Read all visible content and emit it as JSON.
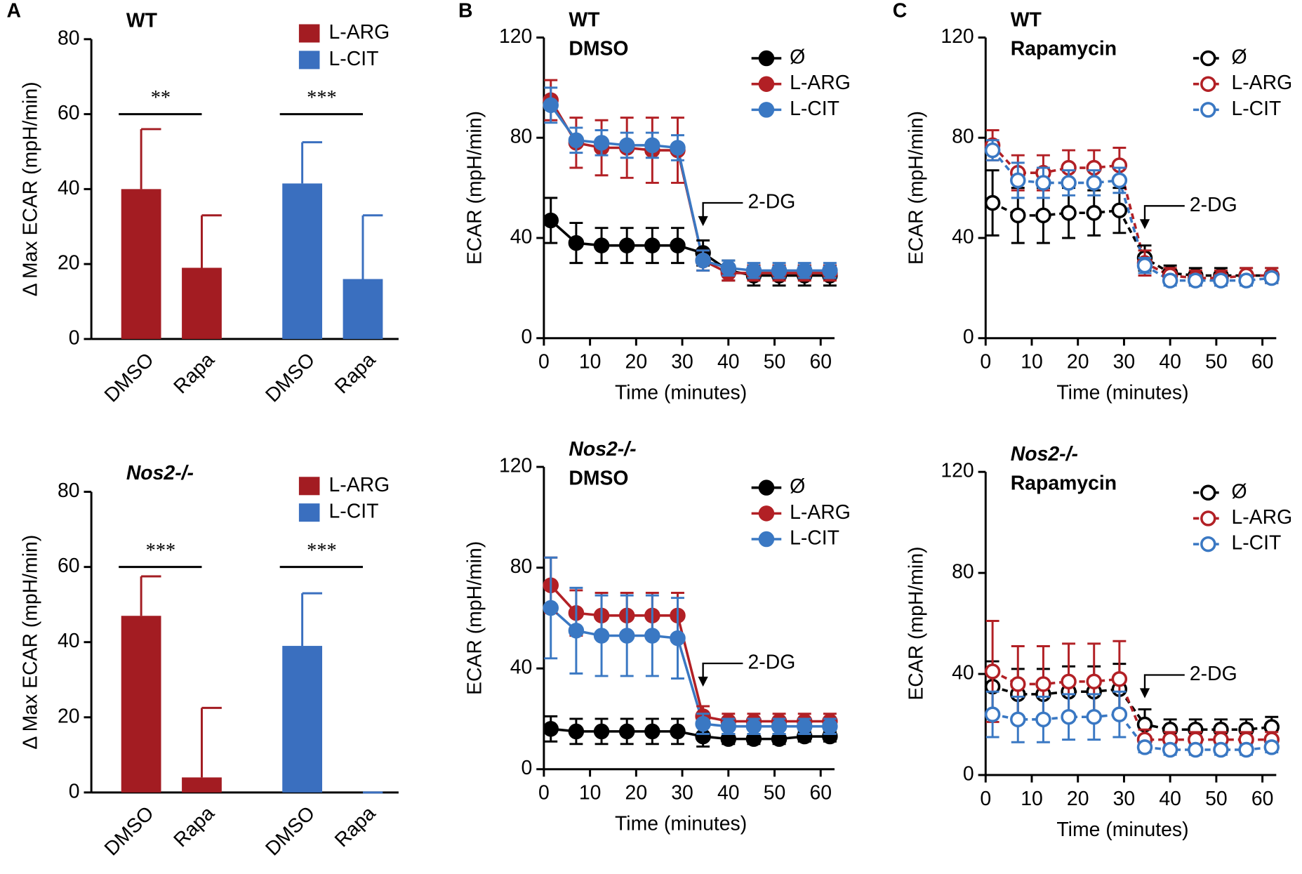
{
  "chart_data": [
    {
      "type": "bar",
      "panel": "A",
      "title": "WT",
      "ylabel": "Δ Max ECAR (mpH/min)",
      "categories": [
        "DMSO",
        "Rapa"
      ],
      "ylim": [
        0,
        80
      ],
      "yticks": [
        0,
        20,
        40,
        60,
        80
      ],
      "series": [
        {
          "name": "L-ARG",
          "color": "#a31c22",
          "values": [
            40,
            19
          ],
          "errors": [
            16,
            14
          ],
          "significance": "**"
        },
        {
          "name": "L-CIT",
          "color": "#3a6fbf",
          "values": [
            41.5,
            16
          ],
          "errors": [
            11,
            17
          ],
          "significance": "***"
        }
      ]
    },
    {
      "type": "line",
      "panel": "B",
      "title": "WT",
      "subtitle": "DMSO",
      "ylabel": "ECAR (mpH/min)",
      "xlabel": "Time (minutes)",
      "linestyle": "solid",
      "marker": "filled",
      "x": [
        1.5,
        7,
        12.5,
        18,
        23.5,
        29,
        34.5,
        40,
        45.5,
        51,
        56.5,
        62
      ],
      "xlim": [
        0,
        63
      ],
      "xticks": [
        0,
        10,
        20,
        30,
        40,
        50,
        60
      ],
      "ylim": [
        0,
        120
      ],
      "yticks": [
        0,
        40,
        80,
        120
      ],
      "annotation": {
        "text": "2-DG",
        "x": 34.5
      },
      "series": [
        {
          "name": "Ø",
          "color": "#000000",
          "values": [
            47,
            38,
            37,
            37,
            37,
            37,
            34,
            27,
            25,
            25,
            25,
            25
          ],
          "errors": [
            9,
            8,
            7,
            7,
            7,
            7,
            5,
            4,
            4,
            4,
            4,
            4
          ]
        },
        {
          "name": "L-ARG",
          "color": "#b22025",
          "values": [
            95,
            78,
            76,
            76,
            75,
            75,
            31,
            26,
            26,
            26,
            26,
            26
          ],
          "errors": [
            8,
            10,
            11,
            12,
            13,
            13,
            4,
            3,
            3,
            3,
            3,
            3
          ]
        },
        {
          "name": "L-CIT",
          "color": "#3a78c3",
          "values": [
            93,
            79,
            78,
            77,
            77,
            76,
            31,
            28,
            27,
            27,
            27,
            27
          ],
          "errors": [
            7,
            5,
            5,
            5,
            5,
            5,
            4,
            3,
            3,
            3,
            3,
            3
          ]
        }
      ]
    },
    {
      "type": "line",
      "panel": "C",
      "title": "WT",
      "subtitle": "Rapamycin",
      "ylabel": "ECAR (mpH/min)",
      "xlabel": "Time (minutes)",
      "linestyle": "dashed",
      "marker": "open",
      "x": [
        1.5,
        7,
        12.5,
        18,
        23.5,
        29,
        34.5,
        40,
        45.5,
        51,
        56.5,
        62
      ],
      "xlim": [
        0,
        63
      ],
      "xticks": [
        0,
        10,
        20,
        30,
        40,
        50,
        60
      ],
      "ylim": [
        0,
        120
      ],
      "yticks": [
        0,
        40,
        80,
        120
      ],
      "annotation": {
        "text": "2-DG",
        "x": 34.5
      },
      "series": [
        {
          "name": "Ø",
          "color": "#000000",
          "values": [
            54,
            49,
            49,
            50,
            50,
            51,
            32,
            26,
            25,
            25,
            25,
            25
          ],
          "errors": [
            13,
            11,
            11,
            10,
            9,
            9,
            5,
            3,
            3,
            3,
            3,
            3
          ]
        },
        {
          "name": "L-ARG",
          "color": "#b22025",
          "values": [
            77,
            66,
            66,
            68,
            68,
            69,
            30,
            25,
            24,
            24,
            25,
            25
          ],
          "errors": [
            6,
            7,
            7,
            7,
            7,
            7,
            5,
            3,
            3,
            3,
            3,
            3
          ]
        },
        {
          "name": "L-CIT",
          "color": "#3a78c3",
          "values": [
            75,
            63,
            62,
            62,
            62,
            63,
            29,
            23,
            23,
            23,
            23,
            24
          ],
          "errors": [
            4,
            7,
            6,
            5,
            5,
            5,
            3,
            2,
            2,
            2,
            2,
            2
          ]
        }
      ]
    },
    {
      "type": "bar",
      "title": "Nos2-/-",
      "ylabel": "Δ Max ECAR (mpH/min)",
      "categories": [
        "DMSO",
        "Rapa"
      ],
      "ylim": [
        0,
        80
      ],
      "yticks": [
        0,
        20,
        40,
        60,
        80
      ],
      "series": [
        {
          "name": "L-ARG",
          "color": "#a31c22",
          "values": [
            47,
            4
          ],
          "errors": [
            10.5,
            18.5
          ],
          "significance": "***"
        },
        {
          "name": "L-CIT",
          "color": "#3a6fbf",
          "values": [
            39,
            0
          ],
          "errors": [
            14,
            0
          ],
          "significance": "***"
        }
      ]
    },
    {
      "type": "line",
      "title": "Nos2-/-",
      "subtitle": "DMSO",
      "ylabel": "ECAR (mpH/min)",
      "xlabel": "Time (minutes)",
      "linestyle": "solid",
      "marker": "filled",
      "x": [
        1.5,
        7,
        12.5,
        18,
        23.5,
        29,
        34.5,
        40,
        45.5,
        51,
        56.5,
        62
      ],
      "xlim": [
        0,
        63
      ],
      "xticks": [
        0,
        10,
        20,
        30,
        40,
        50,
        60
      ],
      "ylim": [
        0,
        120
      ],
      "yticks": [
        0,
        40,
        80,
        120
      ],
      "annotation": {
        "text": "2-DG",
        "x": 34.5
      },
      "series": [
        {
          "name": "Ø",
          "color": "#000000",
          "values": [
            16,
            15,
            15,
            15,
            15,
            15,
            13,
            12,
            12,
            12,
            13,
            13
          ],
          "errors": [
            5,
            5,
            5,
            5,
            5,
            5,
            4,
            2,
            2,
            2,
            2,
            2
          ]
        },
        {
          "name": "L-ARG",
          "color": "#b22025",
          "values": [
            73,
            62,
            61,
            61,
            61,
            61,
            21,
            19,
            19,
            19,
            19,
            19
          ],
          "errors": [
            11,
            9,
            9,
            9,
            9,
            9,
            4,
            3,
            3,
            3,
            3,
            3
          ]
        },
        {
          "name": "L-CIT",
          "color": "#3a78c3",
          "values": [
            64,
            55,
            53,
            53,
            53,
            52,
            18,
            17,
            17,
            17,
            17,
            17
          ],
          "errors": [
            20,
            17,
            16,
            16,
            16,
            16,
            4,
            3,
            3,
            3,
            3,
            3
          ]
        }
      ]
    },
    {
      "type": "line",
      "title": "Nos2-/-",
      "subtitle": "Rapamycin",
      "ylabel": "ECAR (mpH/min)",
      "xlabel": "Time (minutes)",
      "linestyle": "dashed",
      "marker": "open",
      "x": [
        1.5,
        7,
        12.5,
        18,
        23.5,
        29,
        34.5,
        40,
        45.5,
        51,
        56.5,
        62
      ],
      "xlim": [
        0,
        63
      ],
      "xticks": [
        0,
        10,
        20,
        30,
        40,
        50,
        60
      ],
      "ylim": [
        0,
        120
      ],
      "yticks": [
        0,
        40,
        80,
        120
      ],
      "annotation": {
        "text": "2-DG",
        "x": 34.5
      },
      "series": [
        {
          "name": "Ø",
          "color": "#000000",
          "values": [
            35,
            32,
            32,
            33,
            33,
            34,
            20,
            18,
            18,
            18,
            18,
            19
          ],
          "errors": [
            10,
            10,
            10,
            10,
            10,
            10,
            6,
            4,
            4,
            4,
            4,
            4
          ]
        },
        {
          "name": "L-ARG",
          "color": "#b22025",
          "values": [
            41,
            36,
            36,
            37,
            37,
            38,
            14,
            14,
            14,
            14,
            14,
            14
          ],
          "errors": [
            20,
            15,
            15,
            15,
            15,
            15,
            4,
            3,
            3,
            3,
            3,
            3
          ]
        },
        {
          "name": "L-CIT",
          "color": "#3a78c3",
          "values": [
            24,
            22,
            22,
            23,
            23,
            24,
            11,
            10,
            10,
            10,
            10,
            11
          ],
          "errors": [
            9,
            9,
            9,
            9,
            9,
            9,
            2,
            2,
            2,
            2,
            2,
            2
          ]
        }
      ]
    }
  ]
}
